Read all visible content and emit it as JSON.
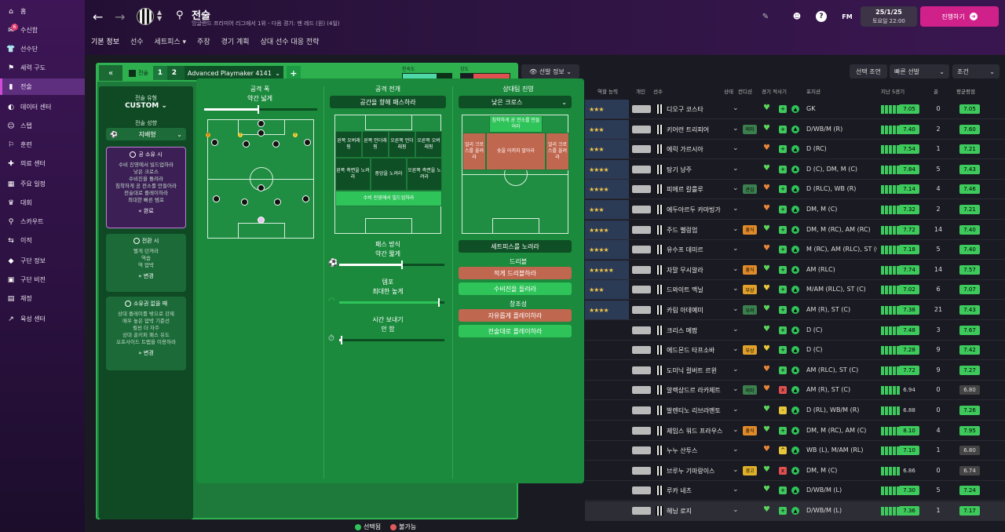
{
  "sidebar": {
    "items": [
      {
        "label": "홈",
        "icon": "home-icon",
        "glyph": "⌂"
      },
      {
        "label": "수신함",
        "icon": "inbox-icon",
        "glyph": "✉",
        "badge": "6"
      },
      {
        "label": "선수단",
        "icon": "shirt-icon",
        "glyph": "👕"
      },
      {
        "label": "세력 구도",
        "icon": "dynamics-icon",
        "glyph": "⚑"
      },
      {
        "label": "전술",
        "icon": "tactics-icon",
        "glyph": "▮",
        "active": true
      },
      {
        "label": "데이터 센터",
        "icon": "data-icon",
        "glyph": "◐"
      },
      {
        "label": "스탭",
        "icon": "staff-icon",
        "glyph": "☺"
      },
      {
        "label": "훈련",
        "icon": "training-icon",
        "glyph": "⚐"
      },
      {
        "label": "의료 센터",
        "icon": "medical-icon",
        "glyph": "✚"
      },
      {
        "label": "주요 일정",
        "icon": "calendar-icon",
        "glyph": "▦"
      },
      {
        "label": "대회",
        "icon": "trophy-icon",
        "glyph": "♛"
      },
      {
        "label": "스카우트",
        "icon": "scout-icon",
        "glyph": "⚲"
      },
      {
        "label": "이적",
        "icon": "transfer-icon",
        "glyph": "⇆"
      },
      {
        "label": "구단 정보",
        "icon": "club-info-icon",
        "glyph": "◆"
      },
      {
        "label": "구단 비전",
        "icon": "vision-icon",
        "glyph": "▣"
      },
      {
        "label": "재정",
        "icon": "finance-icon",
        "glyph": "▤"
      },
      {
        "label": "육성 센터",
        "icon": "development-icon",
        "glyph": "↗"
      }
    ]
  },
  "header": {
    "title": "전술",
    "subtitle": "잉글랜드 프리미어 리그에서 1위 - 다음 경기: 맨 레드 (원) (4일)",
    "tabs": [
      "기본 정보",
      "선수",
      "세트피스 ▾",
      "주장",
      "경기 계획",
      "상대 선수 대응 전략"
    ],
    "date": "25/1/25",
    "time": "토요일 22:00",
    "fm_label": "FM",
    "continue_label": "진행하기"
  },
  "tactic_bar": {
    "label": "전술",
    "slot1": "1",
    "slot2": "2",
    "name": "Advanced Playmaker 4141",
    "familiarity_label": "친숙도",
    "intensity_label": "강도",
    "familiarity_level": 0.7,
    "intensity_level": 0.25
  },
  "left_col": {
    "style_label": "전술 유형",
    "style_value": "CUSTOM",
    "mentality_label": "전술 성향",
    "mentality_value": "지배형",
    "in_possession_title": "공 소유 시",
    "in_possession_lines": [
      "수비 진영에서 빌드업하라",
      "낮은 크로스",
      "수비진을 돌려라",
      "침착하게 공 전소를 만들어라",
      "전술대로 플레이하라",
      "최대한 빠른 템포"
    ],
    "in_possession_edit": "완료",
    "transition_title": "전환 시",
    "transition_lines": [
      "빨게 던져라",
      "역습",
      "역 압박"
    ],
    "transition_edit": "변경",
    "out_possession_title": "소유권 없을 때",
    "out_possession_lines": [
      "상대 플레이를 밖으로 강제",
      "매우 높은 압박 기준선",
      "횔씬 더 자주",
      "상대 골키퍼 패스 유도",
      "오프사이드 트랩을 이용하라"
    ],
    "out_possession_edit": "변경"
  },
  "attack_width": {
    "title": "공격 폭",
    "value": "약간 넓게",
    "level": 0.48
  },
  "approach": {
    "title": "공격 전개",
    "dropdown": "공간을 향해 패스하라",
    "zones_top": [
      "왼쪽 오버래핑",
      "왼쪽 언더래핑",
      "오른쪽 언더래핑",
      "오른쪽 오버래핑"
    ],
    "zones_mid": [
      "왼쪽 측면을 노려라",
      "중앙을 노려라",
      "오른쪽 측면을 노려라"
    ],
    "zone_bottom": "수비 진영에서 빌드업하라",
    "passing_label": "패스 방식",
    "passing_value": "약간 짧게",
    "passing_level": 0.6,
    "tempo_label": "템포",
    "tempo_value": "최대한 높게",
    "tempo_level": 0.95,
    "time_label": "시간 보내기",
    "time_value": "안 함",
    "time_level": 0.02
  },
  "final_third": {
    "title": "상대팀 진영",
    "dropdown": "낮은 크로스",
    "zone_top": "침착하게 공 전소를 만들어라",
    "zone_left": "얼리 크로스를 올려라",
    "zone_mid": "슛을 아끼지 말아라",
    "zone_right": "얼리 크로스를 올려라",
    "setpiece_btn": "세트피스를 노려라",
    "dribble_label": "드리블",
    "dribble_opt1": "적게 드리블하라",
    "dribble_opt2": "수비진을 돌려라",
    "creative_label": "창조성",
    "creative_opt1": "자유롭게 플레이하라",
    "creative_opt2": "전술대로 플레이하라"
  },
  "legend": {
    "selected": "선택됨",
    "unavailable": "불가능"
  },
  "overview_btn": "선발 정보",
  "right_buttons": {
    "selection": "선택 조언",
    "quick": "빠른 선발",
    "filter": "조건"
  },
  "squad_headers": {
    "role": "역할 능력",
    "personal": "개인",
    "player": "선수",
    "cond": "상태",
    "fit": "컨디션",
    "match": "경기 적사기",
    "pos": "포지션",
    "form": "지난 5경기",
    "apps": "골",
    "avg": "평균평점"
  },
  "colors": {
    "accent": "#d0218a",
    "pitch": "#1b8a3d",
    "good": "#3ec95c"
  },
  "players": [
    {
      "stars": "★★★",
      "name": "디오구 코스타",
      "tag": "",
      "pos": "GK",
      "rating": "7.05",
      "apps": "0",
      "avg": "7.05",
      "mood": "heart-green",
      "sq": "+"
    },
    {
      "stars": "★★★",
      "name": "키어런 트리피어",
      "tag": "의미",
      "tagc": "#3a7f4d",
      "pos": "D/WB/M (R)",
      "rating": "7.40",
      "apps": "2",
      "avg": "7.60",
      "mood": "heart-green",
      "sq": "+"
    },
    {
      "stars": "★★★",
      "name": "에릭 가르시아",
      "tag": "",
      "pos": "D (RC)",
      "rating": "7.54",
      "apps": "1",
      "avg": "7.21",
      "mood": "heart-orange",
      "sq": "+"
    },
    {
      "stars": "★★★★",
      "name": "탕기 냥주",
      "tag": "",
      "pos": "D (C), DM, M (C)",
      "rating": "7.84",
      "apps": "5",
      "avg": "7.43",
      "mood": "heart-green",
      "sq": "+"
    },
    {
      "stars": "★★★★",
      "name": "피에르 칼룰루",
      "tag": "관심",
      "tagc": "#3a7f4d",
      "pos": "D (RLC), WB (R)",
      "rating": "7.14",
      "apps": "4",
      "avg": "7.46",
      "mood": "heart-orange",
      "sq": "+"
    },
    {
      "stars": "★★★",
      "name": "에두아르두 카마빙가",
      "tag": "",
      "pos": "DM, M (C)",
      "rating": "7.32",
      "apps": "2",
      "avg": "7.21",
      "mood": "heart-orange",
      "sq": "+"
    },
    {
      "stars": "★★★★",
      "name": "주드 벨링엄",
      "tag": "흥식",
      "tagc": "#e08a2a",
      "pos": "DM, M (RC), AM (RC)",
      "rating": "7.72",
      "apps": "14",
      "avg": "7.40",
      "mood": "heart-green",
      "sq": "+"
    },
    {
      "stars": "★★★★",
      "name": "유수프 데미르",
      "tag": "",
      "pos": "M (RC), AM (RLC), ST (C)",
      "rating": "7.18",
      "apps": "5",
      "avg": "7.40",
      "mood": "heart-orange",
      "sq": "+"
    },
    {
      "stars": "★★★★★",
      "name": "자말 무시알라",
      "tag": "흥식",
      "tagc": "#e08a2a",
      "pos": "AM (RLC)",
      "rating": "7.74",
      "apps": "14",
      "avg": "7.57",
      "mood": "heart-green",
      "sq": "+"
    },
    {
      "stars": "★★★",
      "name": "드와이트 맥닐",
      "tag": "부상",
      "tagc": "#e0a02a",
      "pos": "M/AM (RLC), ST (C)",
      "rating": "7.02",
      "apps": "6",
      "avg": "7.07",
      "mood": "heart-yellow",
      "sq": "+"
    },
    {
      "stars": "★★★★",
      "name": "카림 아데예미",
      "tag": "우려",
      "tagc": "#3a7f4d",
      "pos": "AM (R), ST (C)",
      "rating": "7.38",
      "apps": "21",
      "avg": "7.43",
      "mood": "heart-green",
      "sq": "+"
    },
    {
      "stars": "",
      "name": "크리스 메팜",
      "tag": "",
      "pos": "D (C)",
      "rating": "7.48",
      "apps": "3",
      "avg": "7.67",
      "mood": "heart-green",
      "sq": "+"
    },
    {
      "stars": "",
      "name": "에드몬드 타프소바",
      "tag": "부상",
      "tagc": "#e0a02a",
      "pos": "D (C)",
      "rating": "7.28",
      "apps": "9",
      "avg": "7.42",
      "mood": "heart-yellow",
      "sq": "+"
    },
    {
      "stars": "",
      "name": "도미닉 컬버트 르윈",
      "tag": "",
      "pos": "AM (RLC), ST (C)",
      "rating": "7.72",
      "apps": "9",
      "avg": "7.27",
      "mood": "heart-orange",
      "sq": "+"
    },
    {
      "stars": "",
      "name": "알렉상드르 라카제트",
      "tag": "의미",
      "tagc": "#3a7f4d",
      "pos": "AM (R), ST (C)",
      "rating": "6.94",
      "apps": "0",
      "avg": "6.80",
      "mood": "heart-orange",
      "sq": "x",
      "plain": true,
      "greyavg": true
    },
    {
      "stars": "",
      "name": "발렌티노 리브라멘토",
      "tag": "",
      "pos": "D (RL), WB/M (R)",
      "rating": "6.88",
      "apps": "0",
      "avg": "7.26",
      "mood": "heart-green",
      "sq": "-",
      "plain": true
    },
    {
      "stars": "",
      "name": "제임스 워드 프라우스",
      "tag": "흥식",
      "tagc": "#e08a2a",
      "pos": "DM, M (RC), AM (C)",
      "rating": "8.10",
      "apps": "4",
      "avg": "7.95",
      "mood": "heart-green",
      "sq": "+"
    },
    {
      "stars": "",
      "name": "누누 산투스",
      "tag": "",
      "pos": "WB (L), M/AM (RL)",
      "rating": "7.10",
      "apps": "1",
      "avg": "6.80",
      "mood": "heart-orange",
      "sq": "^",
      "greyavg": true
    },
    {
      "stars": "",
      "name": "브루누 기마랑이스",
      "tag": "경고",
      "tagc": "#e0b02a",
      "pos": "DM, M (C)",
      "rating": "6.86",
      "apps": "0",
      "avg": "6.74",
      "mood": "heart-green",
      "sq": "x",
      "plain": true,
      "greyavg": true
    },
    {
      "stars": "",
      "name": "루카 네츠",
      "tag": "",
      "pos": "D/WB/M (L)",
      "rating": "7.30",
      "apps": "5",
      "avg": "7.24",
      "mood": "heart-green",
      "sq": "+"
    },
    {
      "stars": "",
      "name": "헤닝 로지",
      "tag": "",
      "pos": "D/WB/M (L)",
      "rating": "7.36",
      "apps": "1",
      "avg": "7.17",
      "mood": "heart-green",
      "sq": "+"
    }
  ]
}
